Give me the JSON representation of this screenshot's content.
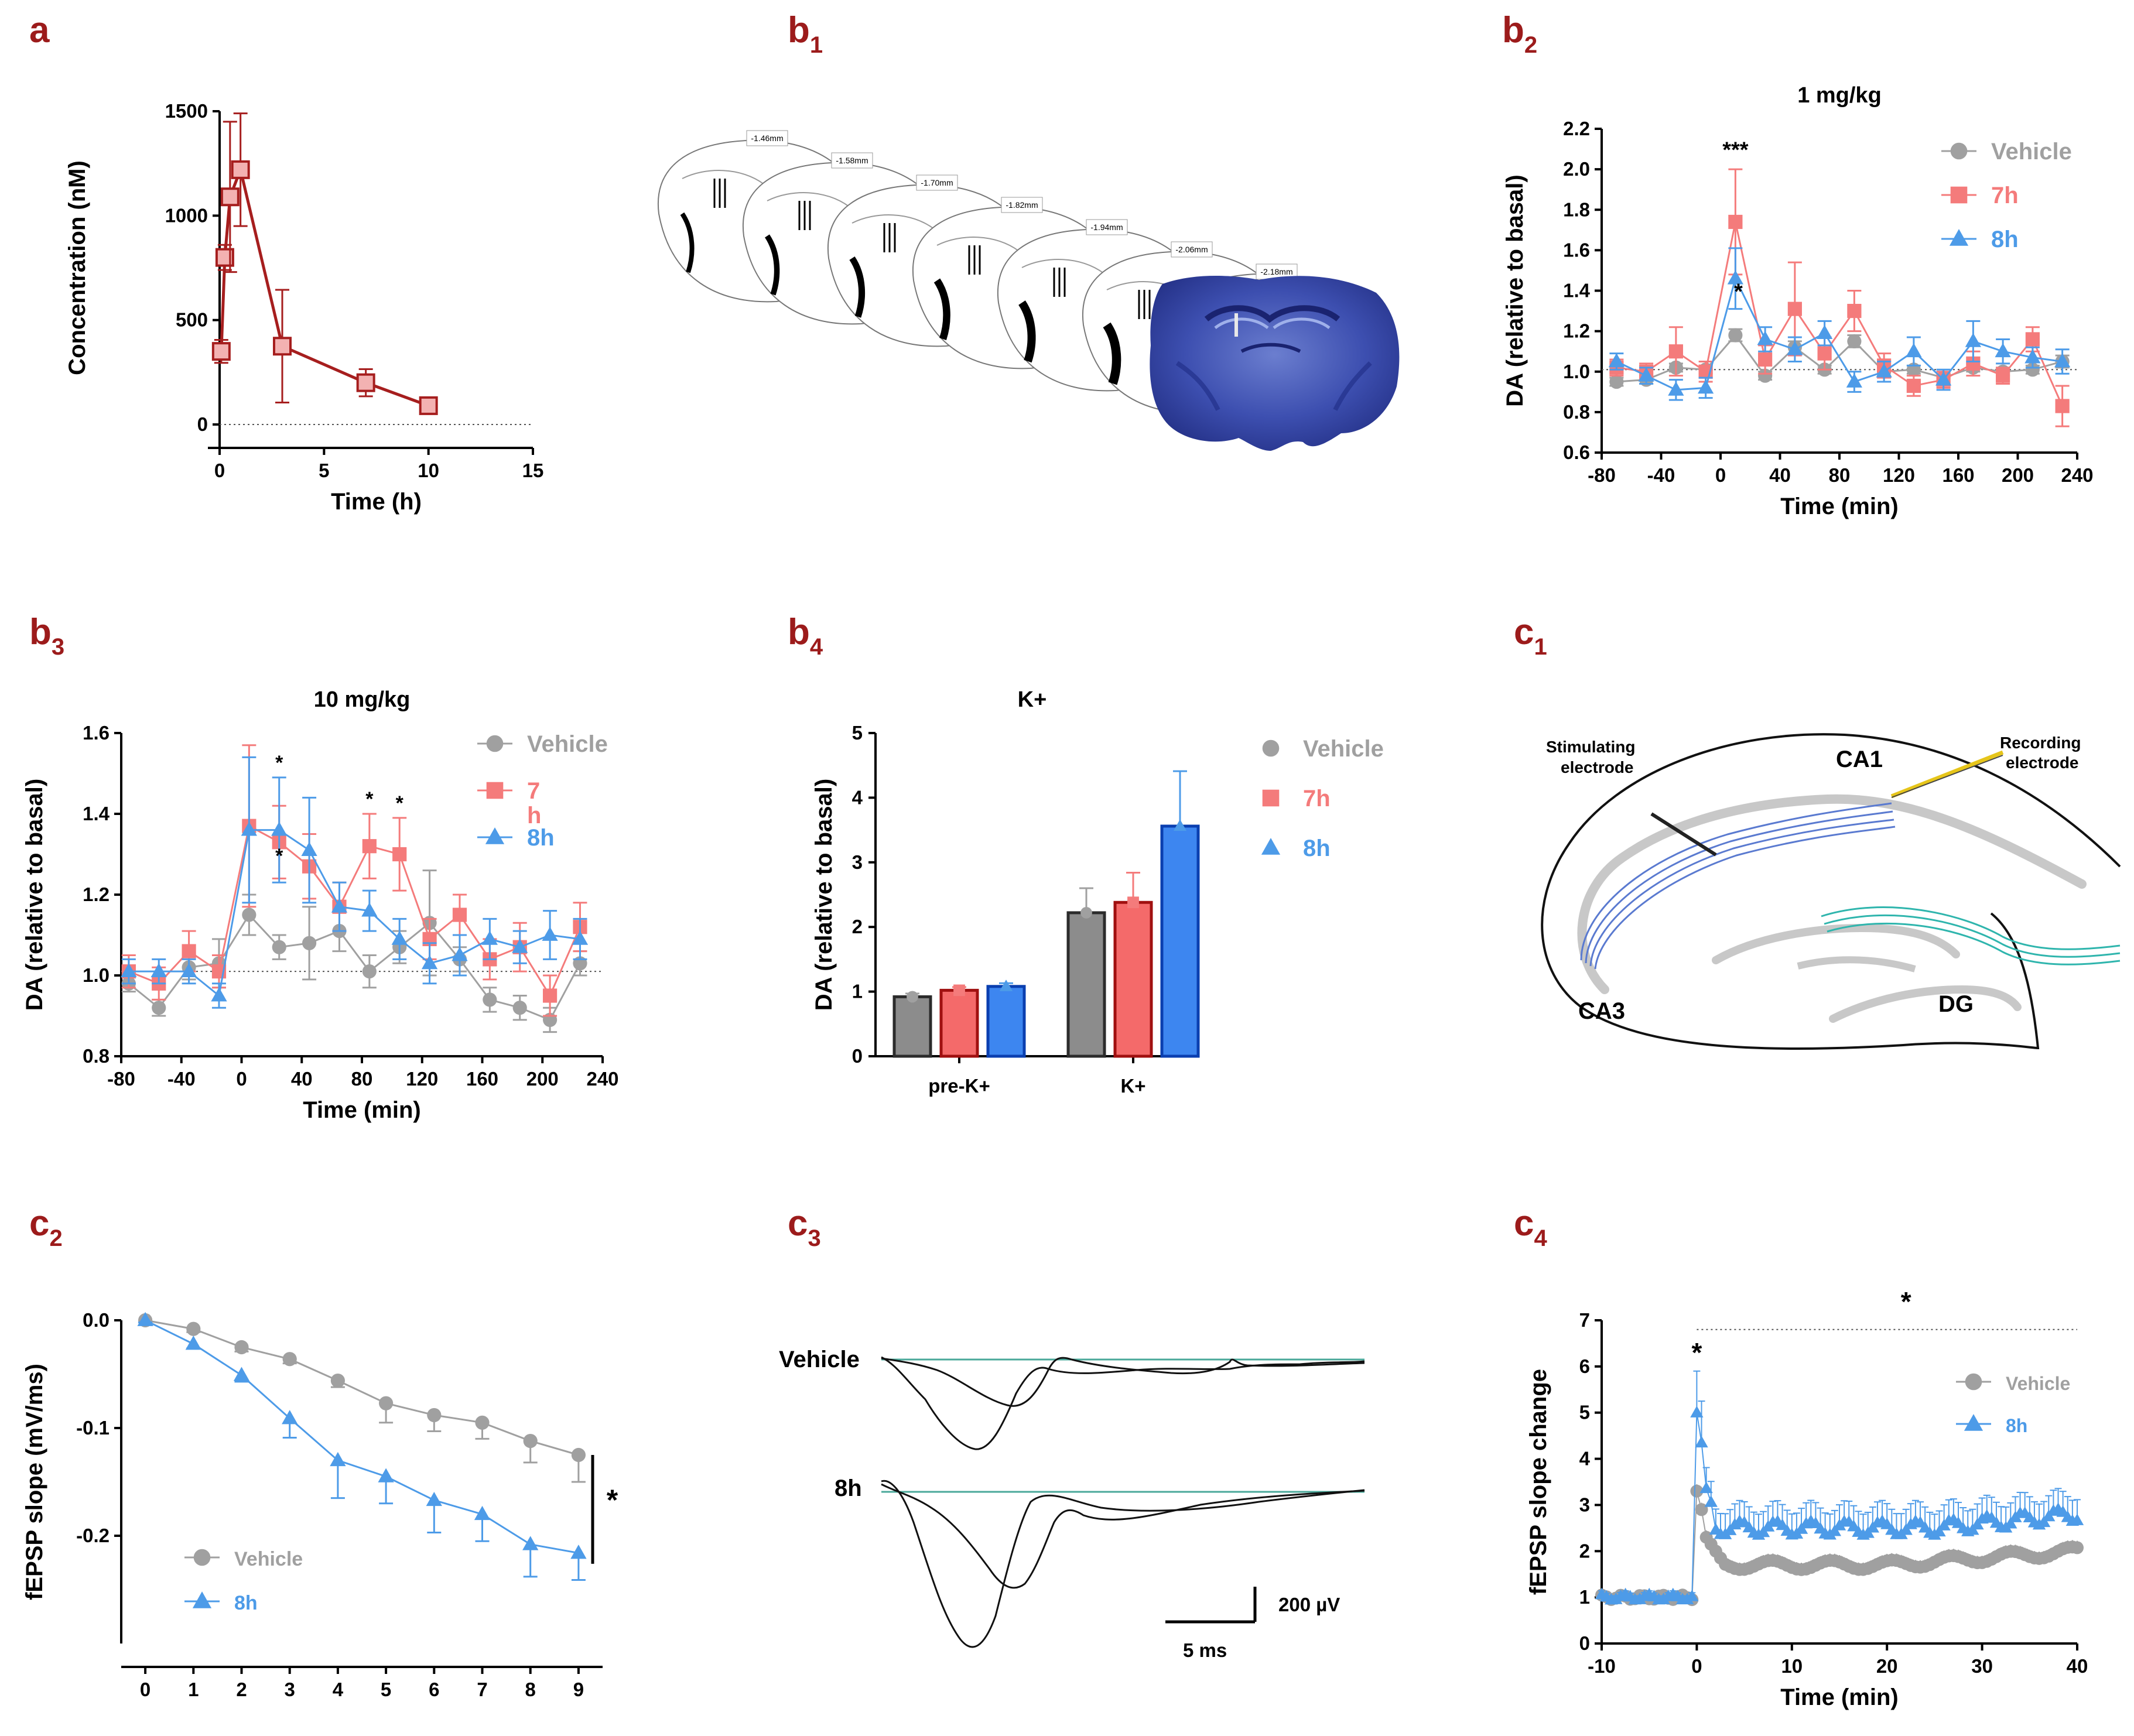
{
  "colors": {
    "panel_label": "#9c1b1b",
    "vehicle": "#a0a0a0",
    "h7": "#f47b7b",
    "h8": "#4d9be8",
    "pk_line": "#a61e1e",
    "pk_fill": "#f3b2b2",
    "bar_gray": "#8c8c8c",
    "bar_red": "#f46a6a",
    "bar_blue": "#3d86f0",
    "hippo_gray": "#c8c8c8",
    "ca1_fiber": "#5a7ad0",
    "dg_fiber": "#2fb5ad",
    "rec_electrode": "#e6c51a",
    "trace_base": "#4aa89a"
  },
  "panels": {
    "a": "a",
    "b1": {
      "main": "b",
      "sub": "1"
    },
    "b2": {
      "main": "b",
      "sub": "2"
    },
    "b3": {
      "main": "b",
      "sub": "3"
    },
    "b4": {
      "main": "b",
      "sub": "4"
    },
    "c1": {
      "main": "c",
      "sub": "1"
    },
    "c2": {
      "main": "c",
      "sub": "2"
    },
    "c3": {
      "main": "c",
      "sub": "3"
    },
    "c4": {
      "main": "c",
      "sub": "4"
    }
  },
  "slices": [
    "-1.46mm",
    "-1.58mm",
    "-1.70mm",
    "-1.82mm",
    "-1.94mm",
    "-2.06mm",
    "-2.18mm"
  ],
  "c1_labels": {
    "stim": [
      "Stimulating",
      "electrode"
    ],
    "rec": [
      "Recording",
      "electrode"
    ],
    "ca1": "CA1",
    "ca3": "CA3",
    "dg": "DG"
  },
  "c3_labels": {
    "vehicle": "Vehicle",
    "h8": "8h",
    "scale_v": "200 µV",
    "scale_t": "5 ms"
  },
  "chart_data": [
    {
      "id": "a",
      "type": "line",
      "title": "",
      "xlabel": "Time (h)",
      "ylabel": "Concentration (nM)",
      "xlim": [
        0,
        15
      ],
      "ylim": [
        0,
        1500
      ],
      "xticks": [
        0,
        5,
        10,
        15
      ],
      "yticks": [
        0,
        500,
        1000,
        1500
      ],
      "series": [
        {
          "name": "Concentration",
          "x": [
            0.08,
            0.25,
            0.5,
            1,
            3,
            7,
            10
          ],
          "y": [
            350,
            800,
            1090,
            1220,
            375,
            200,
            90
          ],
          "err": [
            55,
            60,
            360,
            270,
            270,
            65,
            18
          ]
        }
      ]
    },
    {
      "id": "b2",
      "type": "line",
      "title": "1 mg/kg",
      "xlabel": "Time (min)",
      "ylabel": "DA (relative to basal)",
      "xlim": [
        -80,
        240
      ],
      "ylim": [
        0.6,
        2.2
      ],
      "xticks": [
        -80,
        -40,
        0,
        40,
        80,
        120,
        160,
        200,
        240
      ],
      "yticks": [
        0.6,
        0.8,
        1.0,
        1.2,
        1.4,
        1.6,
        1.8,
        2.0,
        2.2
      ],
      "baseline": 1.01,
      "series": [
        {
          "name": "Vehicle",
          "marker": "circle",
          "x": [
            -70,
            -50,
            -30,
            -10,
            10,
            30,
            50,
            70,
            90,
            110,
            130,
            150,
            170,
            190,
            210,
            230
          ],
          "y": [
            0.95,
            0.96,
            1.02,
            1.01,
            1.18,
            0.98,
            1.12,
            1.01,
            1.15,
            1.0,
            1.01,
            0.97,
            1.02,
            1.0,
            1.01,
            1.05
          ],
          "err": [
            0.02,
            0.02,
            0.02,
            0.02,
            0.03,
            0.02,
            0.03,
            0.02,
            0.03,
            0.02,
            0.02,
            0.02,
            0.02,
            0.02,
            0.02,
            0.03
          ]
        },
        {
          "name": "7h",
          "marker": "square",
          "x": [
            -70,
            -50,
            -30,
            -10,
            10,
            30,
            50,
            70,
            90,
            110,
            130,
            150,
            170,
            190,
            210,
            230
          ],
          "y": [
            1.02,
            1.0,
            1.1,
            1.0,
            1.74,
            1.06,
            1.31,
            1.09,
            1.3,
            1.03,
            0.93,
            0.96,
            1.04,
            0.98,
            1.16,
            0.83
          ],
          "err": [
            0.04,
            0.04,
            0.12,
            0.05,
            0.26,
            0.07,
            0.23,
            0.08,
            0.1,
            0.06,
            0.05,
            0.04,
            0.06,
            0.04,
            0.06,
            0.1
          ]
        },
        {
          "name": "8h",
          "marker": "triangle",
          "x": [
            -70,
            -50,
            -30,
            -10,
            10,
            30,
            50,
            70,
            90,
            110,
            130,
            150,
            170,
            190,
            210,
            230
          ],
          "y": [
            1.05,
            0.98,
            0.91,
            0.92,
            1.46,
            1.16,
            1.11,
            1.19,
            0.95,
            1.0,
            1.1,
            0.96,
            1.15,
            1.1,
            1.07,
            1.05
          ],
          "err": [
            0.04,
            0.04,
            0.05,
            0.05,
            0.15,
            0.06,
            0.06,
            0.06,
            0.05,
            0.05,
            0.07,
            0.05,
            0.1,
            0.06,
            0.05,
            0.06
          ]
        }
      ],
      "annotations": [
        {
          "text": "***",
          "x": 10,
          "y": 2.06
        },
        {
          "text": "*",
          "x": 12,
          "y": 1.36
        }
      ]
    },
    {
      "id": "b3",
      "type": "line",
      "title": "10 mg/kg",
      "xlabel": "Time (min)",
      "ylabel": "DA (relative to basal)",
      "xlim": [
        -80,
        240
      ],
      "ylim": [
        0.8,
        1.6
      ],
      "xticks": [
        -80,
        -40,
        0,
        40,
        80,
        120,
        160,
        200,
        240
      ],
      "yticks": [
        0.8,
        1.0,
        1.2,
        1.4,
        1.6
      ],
      "baseline": 1.01,
      "series": [
        {
          "name": "Vehicle",
          "marker": "circle",
          "x": [
            -75,
            -55,
            -35,
            -15,
            5,
            25,
            45,
            65,
            85,
            105,
            125,
            145,
            165,
            185,
            205,
            225
          ],
          "y": [
            0.98,
            0.92,
            1.02,
            1.03,
            1.15,
            1.07,
            1.08,
            1.11,
            1.01,
            1.07,
            1.13,
            1.04,
            0.94,
            0.92,
            0.89,
            1.03
          ],
          "err": [
            0.02,
            0.02,
            0.03,
            0.06,
            0.05,
            0.03,
            0.09,
            0.05,
            0.04,
            0.04,
            0.13,
            0.03,
            0.03,
            0.03,
            0.03,
            0.03
          ]
        },
        {
          "name": "7\nh",
          "marker": "square",
          "x": [
            -75,
            -55,
            -35,
            -15,
            5,
            25,
            45,
            65,
            85,
            105,
            125,
            145,
            165,
            185,
            205,
            225
          ],
          "y": [
            1.01,
            0.98,
            1.06,
            1.01,
            1.37,
            1.33,
            1.27,
            1.17,
            1.32,
            1.3,
            1.09,
            1.15,
            1.04,
            1.07,
            0.95,
            1.12
          ],
          "err": [
            0.04,
            0.04,
            0.05,
            0.04,
            0.2,
            0.09,
            0.08,
            0.06,
            0.08,
            0.09,
            0.05,
            0.05,
            0.05,
            0.06,
            0.05,
            0.06
          ]
        },
        {
          "name": "8h",
          "marker": "triangle",
          "x": [
            -75,
            -55,
            -35,
            -15,
            5,
            25,
            45,
            65,
            85,
            105,
            125,
            145,
            165,
            185,
            205,
            225
          ],
          "y": [
            1.01,
            1.01,
            1.01,
            0.95,
            1.36,
            1.36,
            1.31,
            1.17,
            1.16,
            1.09,
            1.03,
            1.05,
            1.09,
            1.07,
            1.1,
            1.09
          ],
          "err": [
            0.03,
            0.03,
            0.03,
            0.03,
            0.18,
            0.13,
            0.13,
            0.06,
            0.05,
            0.05,
            0.05,
            0.05,
            0.05,
            0.04,
            0.06,
            0.05
          ]
        }
      ],
      "annotations": [
        {
          "text": "*",
          "x": 25,
          "y": 1.51
        },
        {
          "text": "*",
          "x": 25,
          "y": 1.28
        },
        {
          "text": "*",
          "x": 85,
          "y": 1.42
        },
        {
          "text": "*",
          "x": 105,
          "y": 1.41
        }
      ]
    },
    {
      "id": "b4",
      "type": "bar",
      "title": "K+",
      "xlabel": "",
      "ylabel": "DA (relative to basal)",
      "ylim": [
        0,
        5
      ],
      "yticks": [
        0,
        1,
        2,
        3,
        4,
        5
      ],
      "categories": [
        "pre-K+",
        "K+"
      ],
      "series": [
        {
          "name": "Vehicle",
          "marker": "circle",
          "values": [
            0.92,
            2.22
          ],
          "err": [
            0.05,
            0.38
          ]
        },
        {
          "name": "7h",
          "marker": "square",
          "values": [
            1.02,
            2.38
          ],
          "err": [
            0.05,
            0.46
          ]
        },
        {
          "name": "8h",
          "marker": "triangle",
          "values": [
            1.08,
            3.56
          ],
          "err": [
            0.05,
            0.85
          ]
        }
      ]
    },
    {
      "id": "c2",
      "type": "line",
      "title": "",
      "xlabel": "",
      "ylabel": "fEPSP slope (mV/ms)",
      "xlim": [
        -0.5,
        9.5
      ],
      "ylim": [
        -0.3,
        0.0
      ],
      "xticks": [
        0,
        1,
        2,
        3,
        4,
        5,
        6,
        7,
        8,
        9
      ],
      "yticks": [
        0.0,
        -0.1,
        -0.2
      ],
      "ytick_labels": [
        "0.0",
        "-0.1",
        "-0.2"
      ],
      "series": [
        {
          "name": "Vehicle",
          "marker": "circle",
          "x": [
            0,
            1,
            2,
            3,
            4,
            5,
            6,
            7,
            8,
            9
          ],
          "y": [
            0.0,
            -0.008,
            -0.025,
            -0.036,
            -0.056,
            -0.077,
            -0.088,
            -0.095,
            -0.112,
            -0.125
          ],
          "err": [
            0.002,
            0.003,
            0.004,
            0.004,
            0.006,
            0.018,
            0.015,
            0.015,
            0.02,
            0.025
          ]
        },
        {
          "name": "8h",
          "marker": "triangle",
          "x": [
            0,
            1,
            2,
            3,
            4,
            5,
            6,
            7,
            8,
            9
          ],
          "y": [
            0.0,
            -0.022,
            -0.051,
            -0.091,
            -0.13,
            -0.145,
            -0.167,
            -0.18,
            -0.208,
            -0.216
          ],
          "err": [
            0.002,
            0.004,
            0.006,
            0.018,
            0.035,
            0.025,
            0.03,
            0.025,
            0.03,
            0.025
          ]
        }
      ],
      "annotations": [
        {
          "text": "*",
          "x": 9.7,
          "y": -0.176
        }
      ]
    },
    {
      "id": "c4",
      "type": "scatter",
      "title": "",
      "xlabel": "Time (min)",
      "ylabel": "fEPSP slope change",
      "xlim": [
        -10,
        40
      ],
      "ylim": [
        0,
        7
      ],
      "xticks": [
        -10,
        0,
        10,
        20,
        30,
        40
      ],
      "yticks": [
        0,
        1,
        2,
        3,
        4,
        5,
        6,
        7
      ],
      "series": [
        {
          "name": "Vehicle",
          "marker": "circle",
          "note": "baseline ~1.0 (t=-10..0), post-stim peak 3.3 then ~1.7-2.0, rising to ~2.1 by 40 min"
        },
        {
          "name": "8h",
          "marker": "triangle",
          "note": "baseline ~1.0, peak 5.0 (+0.9) at t=0, then ~2.5-2.9 through 40 min"
        }
      ],
      "annotations": [
        {
          "text": "*",
          "x": 0,
          "y": 6.1
        },
        {
          "text": "*",
          "x": 22,
          "y": 7.2
        }
      ]
    }
  ]
}
